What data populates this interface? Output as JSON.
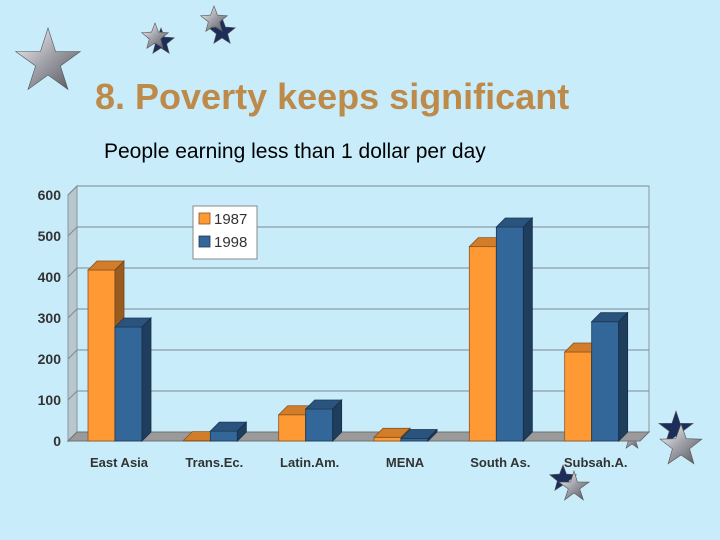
{
  "slide": {
    "title": "8. Poverty keeps significant",
    "subtitle": "People earning less than 1 dollar per day"
  },
  "decorations": [
    "star-icon"
  ],
  "chart_data": {
    "type": "bar",
    "categories": [
      "East Asia",
      "Trans.Ec.",
      "Latin.Am.",
      "MENA",
      "South As.",
      "Subsah.A."
    ],
    "series": [
      {
        "name": "1987",
        "values": [
          417,
          1,
          64,
          9,
          474,
          217
        ],
        "color": "#ff9933"
      },
      {
        "name": "1998",
        "values": [
          278,
          24,
          78,
          6,
          522,
          291
        ],
        "color": "#336699"
      }
    ],
    "yticks": [
      "0",
      "100",
      "200",
      "300",
      "400",
      "500",
      "600"
    ],
    "ylim": [
      0,
      600
    ],
    "grid": true,
    "legend": "top-left"
  }
}
